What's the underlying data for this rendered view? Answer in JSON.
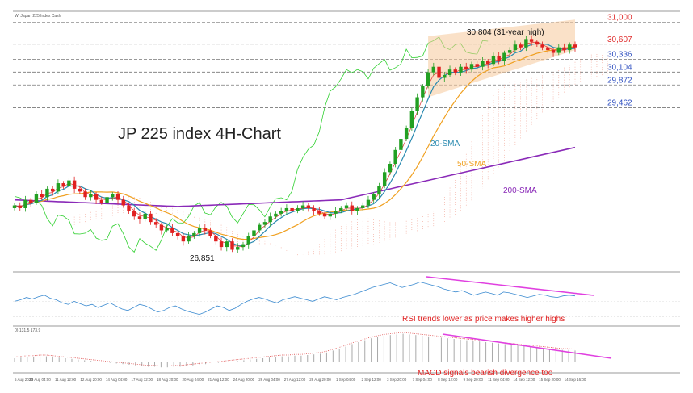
{
  "header": {
    "instrument": "W: Japan 225 Index Cash",
    "macd_header": "0) 131.5 173.9"
  },
  "chart_data": [
    {
      "type": "candlestick",
      "title": "JP 225 index 4H-Chart",
      "ylim": [
        26500,
        31200
      ],
      "levels": [
        {
          "value": 31000,
          "label": "31,000",
          "color": "#e03030"
        },
        {
          "value": 30607,
          "label": "30,607",
          "color": "#e03030"
        },
        {
          "value": 30336,
          "label": "30,336",
          "color": "#3050c0"
        },
        {
          "value": 30104,
          "label": "30,104",
          "color": "#3050c0"
        },
        {
          "value": 29872,
          "label": "29,872",
          "color": "#3050c0"
        },
        {
          "value": 29462,
          "label": "29,462",
          "color": "#3050c0"
        }
      ],
      "annotations": {
        "high": {
          "value": 30804,
          "label": "30,804 (31-year high)"
        },
        "low": {
          "value": 26851,
          "label": "26,851"
        }
      },
      "series": [
        {
          "name": "20-SMA",
          "color": "#2a8ab0"
        },
        {
          "name": "50-SMA",
          "color": "#f0a020"
        },
        {
          "name": "200-SMA",
          "color": "#8a2ab8"
        }
      ],
      "trend_channel_color": "#f6c89a",
      "colors": {
        "up": "#22a022",
        "down": "#e02020",
        "ichimoku_span": "#30d030",
        "ichimoku_cloud": "#f0a090"
      },
      "closes": [
        27700,
        27650,
        27800,
        27750,
        27900,
        27850,
        28000,
        27950,
        28100,
        28050,
        28150,
        28000,
        27950,
        27850,
        27900,
        27800,
        27750,
        27850,
        27900,
        27800,
        27700,
        27600,
        27500,
        27450,
        27550,
        27400,
        27350,
        27250,
        27300,
        27200,
        27150,
        27050,
        27150,
        27200,
        27300,
        27250,
        27150,
        27050,
        26950,
        27050,
        26900,
        26950,
        27000,
        27150,
        27250,
        27350,
        27400,
        27500,
        27550,
        27600,
        27650,
        27600,
        27650,
        27700,
        27650,
        27600,
        27550,
        27500,
        27550,
        27600,
        27650,
        27700,
        27600,
        27650,
        27700,
        27800,
        27900,
        28050,
        28300,
        28450,
        28700,
        28900,
        29100,
        29400,
        29650,
        29850,
        30100,
        30200,
        30000,
        30050,
        30150,
        30100,
        30200,
        30150,
        30250,
        30200,
        30300,
        30250,
        30400,
        30300,
        30450,
        30500,
        30600,
        30550,
        30700,
        30650,
        30600,
        30550,
        30500,
        30450,
        30550,
        30500,
        30600,
        30550
      ]
    },
    {
      "type": "line",
      "title": "RSI",
      "annotation": "RSI trends lower as price makes higher highs",
      "color": "#3a8ad0",
      "trendline_color": "#e040e0",
      "values": [
        50,
        52,
        55,
        53,
        56,
        58,
        54,
        52,
        48,
        46,
        50,
        47,
        44,
        46,
        42,
        45,
        48,
        44,
        40,
        38,
        42,
        46,
        44,
        40,
        36,
        38,
        42,
        44,
        40,
        37,
        35,
        33,
        36,
        40,
        44,
        42,
        38,
        41,
        46,
        50,
        53,
        55,
        53,
        50,
        48,
        52,
        54,
        56,
        54,
        52,
        50,
        53,
        56,
        54,
        52,
        55,
        57,
        59,
        62,
        65,
        68,
        70,
        72,
        74,
        71,
        68,
        70,
        72,
        75,
        73,
        71,
        69,
        66,
        64,
        62,
        64,
        61,
        58,
        60,
        62,
        60,
        58,
        62,
        61,
        59,
        57,
        55,
        57,
        59,
        58,
        56,
        55,
        57,
        58,
        57
      ]
    },
    {
      "type": "bar",
      "title": "MACD",
      "annotation": "MACD signals bearish divergence too",
      "color": "#a8a8a8",
      "signal_color": "#e05050",
      "trendline_color": "#e040e0",
      "values": [
        5,
        6,
        7,
        7,
        8,
        8,
        7,
        6,
        5,
        4,
        3,
        2,
        1,
        0,
        -1,
        -2,
        -3,
        -4,
        -5,
        -6,
        -7,
        -8,
        -8,
        -9,
        -9,
        -8,
        -8,
        -7,
        -6,
        -5,
        -4,
        -3,
        -2,
        -1,
        0,
        1,
        2,
        3,
        4,
        5,
        6,
        7,
        8,
        8,
        9,
        9,
        10,
        11,
        12,
        14,
        17,
        20,
        23,
        27,
        30,
        33,
        36,
        38,
        40,
        41,
        42,
        43,
        42,
        41,
        40,
        39,
        38,
        37,
        36,
        35,
        34,
        33,
        32,
        31,
        30,
        29,
        28,
        27,
        26,
        25,
        24,
        23,
        22,
        21,
        20,
        19,
        18,
        18,
        17
      ]
    }
  ],
  "x_axis": {
    "labels": [
      "5 Aug 2020",
      "10 Aug 04:00",
      "11 Aug 12:00",
      "12 Aug 20:00",
      "14 Aug 04:00",
      "17 Aug 12:00",
      "18 Aug 20:00",
      "20 Aug 04:00",
      "21 Aug 12:00",
      "24 Aug 20:00",
      "26 Aug 04:00",
      "27 Aug 12:00",
      "28 Aug 20:00",
      "1 Sep 04:00",
      "2 Sep 12:00",
      "3 Sep 20:00",
      "7 Sep 04:00",
      "8 Sep 12:00",
      "9 Sep 20:00",
      "11 Sep 04:00",
      "14 Sep 12:00",
      "15 Sep 20:00",
      "14 Sep 16:00"
    ]
  }
}
